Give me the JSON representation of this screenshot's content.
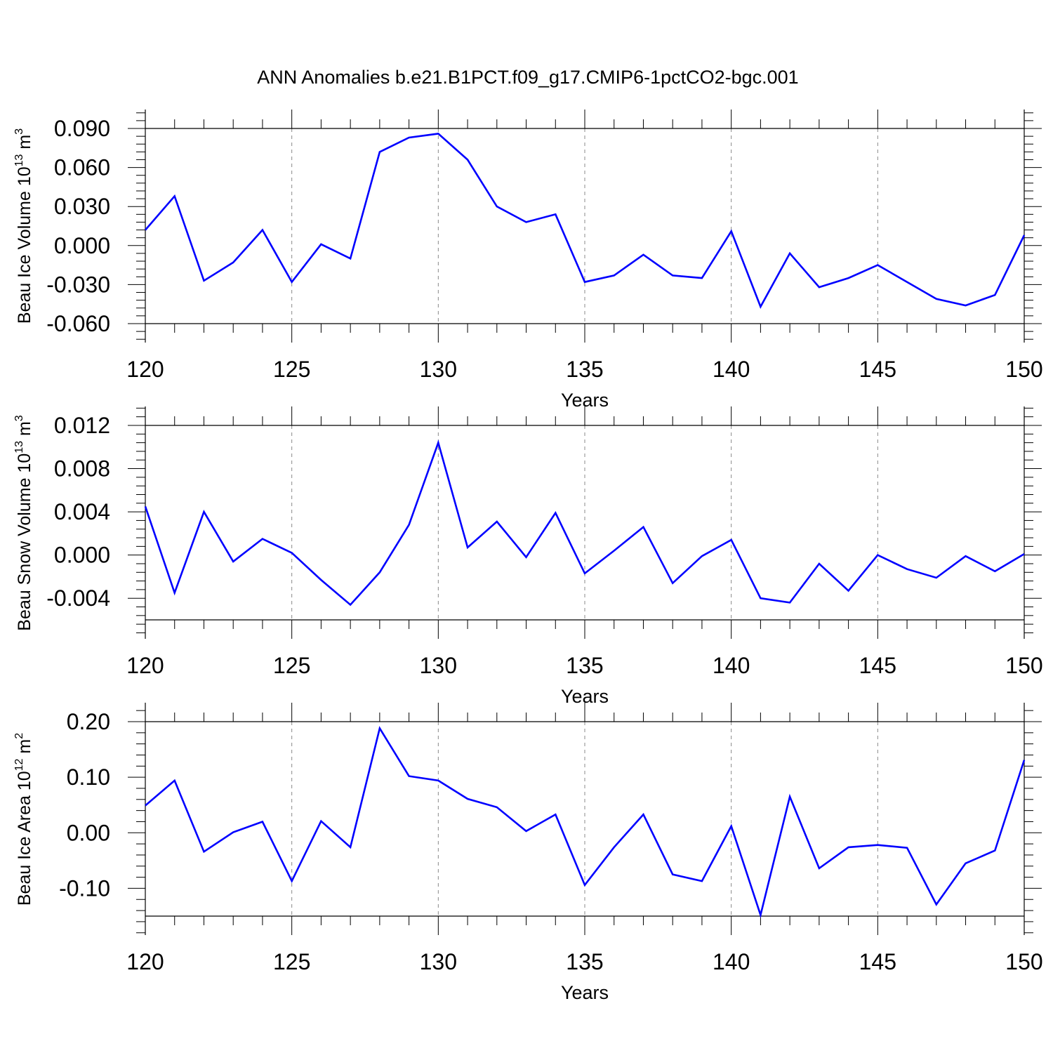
{
  "title": "ANN Anomalies b.e21.B1PCT.f09_g17.CMIP6-1pctCO2-bgc.001",
  "chart_data": [
    {
      "type": "line",
      "xlabel": "Years",
      "ylabel": {
        "prefix": "Beau Ice Volume 10",
        "exp": "13",
        "unit": " m",
        "unit_exp": "3"
      },
      "xlim": [
        120,
        150
      ],
      "ylim": [
        -0.06,
        0.09
      ],
      "xticks": [
        120,
        125,
        130,
        135,
        140,
        145,
        150
      ],
      "yticks": [
        0.09,
        0.06,
        0.03,
        0.0,
        -0.03,
        -0.06
      ],
      "ytick_labels": [
        "0.090",
        "0.060",
        "0.030",
        "0.000",
        "-0.030",
        "-0.060"
      ],
      "grid": "dashed vertical at major x ticks",
      "series": [
        {
          "color": "#0000ff",
          "x": [
            120,
            121,
            122,
            123,
            124,
            125,
            126,
            127,
            128,
            129,
            130,
            131,
            132,
            133,
            134,
            135,
            136,
            137,
            138,
            139,
            140,
            141,
            142,
            143,
            144,
            145,
            146,
            147,
            148,
            149,
            150
          ],
          "y": [
            0.012,
            0.038,
            -0.027,
            -0.013,
            0.012,
            -0.028,
            0.001,
            -0.01,
            0.072,
            0.083,
            0.086,
            0.066,
            0.03,
            0.018,
            0.024,
            -0.028,
            -0.023,
            -0.007,
            -0.023,
            -0.025,
            0.011,
            -0.047,
            -0.006,
            -0.032,
            -0.025,
            -0.015,
            -0.028,
            -0.041,
            -0.046,
            -0.038,
            0.008
          ]
        }
      ]
    },
    {
      "type": "line",
      "xlabel": "Years",
      "ylabel": {
        "prefix": "Beau Snow Volume 10",
        "exp": "13",
        "unit": " m",
        "unit_exp": "3"
      },
      "xlim": [
        120,
        150
      ],
      "ylim": [
        -0.006,
        0.012
      ],
      "xticks": [
        120,
        125,
        130,
        135,
        140,
        145,
        150
      ],
      "yticks": [
        0.012,
        0.008,
        0.004,
        0.0,
        -0.004
      ],
      "ytick_labels": [
        "0.012",
        "0.008",
        "0.004",
        "0.000",
        "-0.004"
      ],
      "grid": "dashed vertical at major x ticks",
      "series": [
        {
          "color": "#0000ff",
          "x": [
            120,
            121,
            122,
            123,
            124,
            125,
            126,
            127,
            128,
            129,
            130,
            131,
            132,
            133,
            134,
            135,
            136,
            137,
            138,
            139,
            140,
            141,
            142,
            143,
            144,
            145,
            146,
            147,
            148,
            149,
            150
          ],
          "y": [
            0.0045,
            -0.0035,
            0.004,
            -0.0006,
            0.0015,
            0.0002,
            -0.0023,
            -0.0046,
            -0.0016,
            0.0028,
            0.0104,
            0.0007,
            0.0031,
            -0.0002,
            0.0039,
            -0.0017,
            0.0004,
            0.0026,
            -0.0026,
            -0.0001,
            0.0014,
            -0.004,
            -0.0044,
            -0.0008,
            -0.0033,
            0.0,
            -0.0013,
            -0.0021,
            -0.0001,
            -0.0015,
            0.0001
          ]
        }
      ]
    },
    {
      "type": "line",
      "xlabel": "Years",
      "ylabel": {
        "prefix": "Beau Ice Area 10",
        "exp": "12",
        "unit": " m",
        "unit_exp": "2"
      },
      "xlim": [
        120,
        150
      ],
      "ylim": [
        -0.15,
        0.2
      ],
      "xticks": [
        120,
        125,
        130,
        135,
        140,
        145,
        150
      ],
      "yticks": [
        0.2,
        0.1,
        0.0,
        -0.1
      ],
      "ytick_labels": [
        "0.20",
        "0.10",
        "0.00",
        "-0.10"
      ],
      "grid": "dashed vertical at major x ticks",
      "series": [
        {
          "color": "#0000ff",
          "x": [
            120,
            121,
            122,
            123,
            124,
            125,
            126,
            127,
            128,
            129,
            130,
            131,
            132,
            133,
            134,
            135,
            136,
            137,
            138,
            139,
            140,
            141,
            142,
            143,
            144,
            145,
            146,
            147,
            148,
            149,
            150
          ],
          "y": [
            0.049,
            0.094,
            -0.034,
            0.001,
            0.02,
            -0.087,
            0.021,
            -0.026,
            0.188,
            0.102,
            0.094,
            0.061,
            0.046,
            0.003,
            0.033,
            -0.094,
            -0.026,
            0.033,
            -0.075,
            -0.087,
            0.012,
            -0.148,
            0.065,
            -0.064,
            -0.026,
            -0.022,
            -0.027,
            -0.129,
            -0.055,
            -0.032,
            0.131
          ]
        }
      ]
    }
  ]
}
